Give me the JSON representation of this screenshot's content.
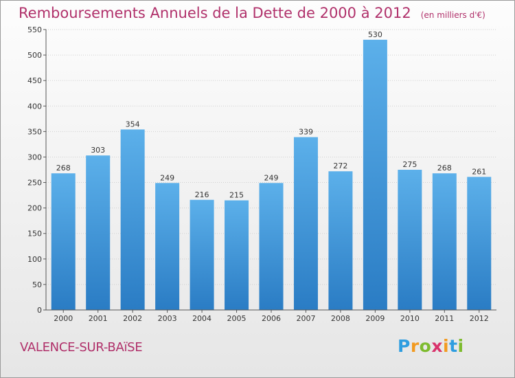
{
  "title": "Remboursements Annuels de la Dette de 2000 à 2012",
  "unit_note": "(en milliers d'€)",
  "city": "VALENCE-SUR-BAïSE",
  "brand": {
    "letters": [
      "P",
      "r",
      "o",
      "x",
      "i",
      "t",
      "i"
    ],
    "colors": [
      "#2e9de0",
      "#f29a1f",
      "#7dbb2e",
      "#d9336b",
      "#f29a1f",
      "#2e9de0",
      "#7dbb2e"
    ]
  },
  "colors": {
    "accent": "#b0306a",
    "bar_top": "#5cb0ea",
    "bar_bottom": "#2a7cc4"
  },
  "chart_data": {
    "type": "bar",
    "categories": [
      "2000",
      "2001",
      "2002",
      "2003",
      "2004",
      "2005",
      "2006",
      "2007",
      "2008",
      "2009",
      "2010",
      "2011",
      "2012"
    ],
    "values": [
      268,
      303,
      354,
      249,
      216,
      215,
      249,
      339,
      272,
      530,
      275,
      268,
      261
    ],
    "ylim": [
      0,
      550
    ],
    "yticks": [
      0,
      50,
      100,
      150,
      200,
      250,
      300,
      350,
      400,
      450,
      500,
      550
    ],
    "grid": true,
    "xlabel": "",
    "ylabel": ""
  }
}
